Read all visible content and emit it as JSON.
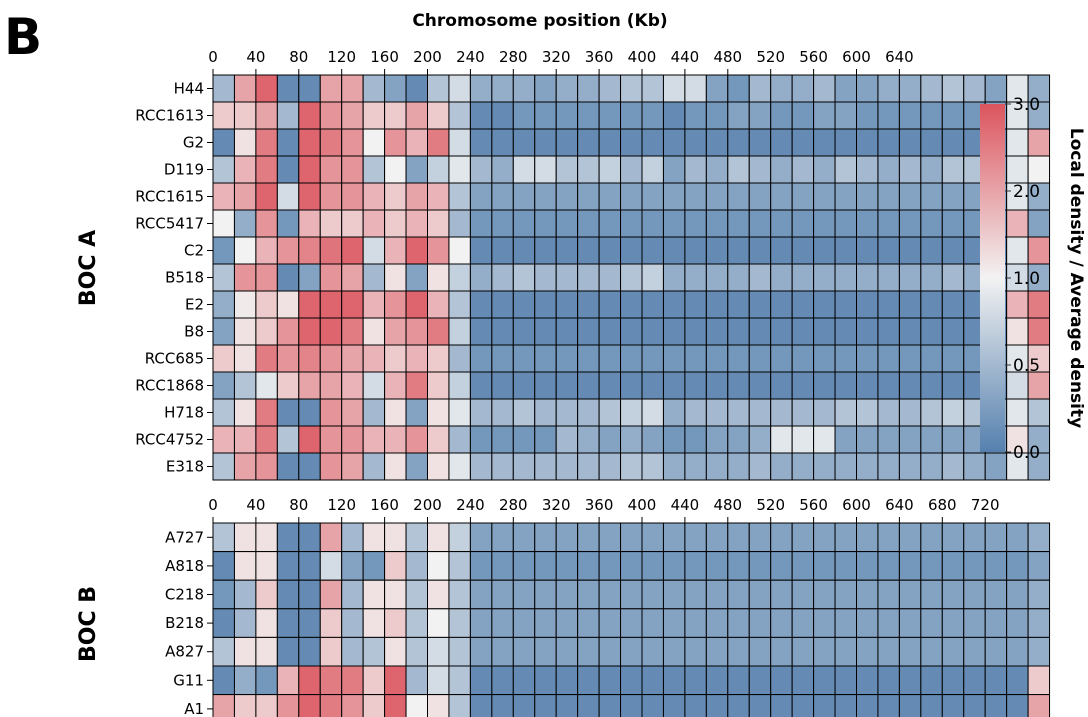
{
  "figure": {
    "panel_letter": "B",
    "xaxis_title": "Chromosome position (Kb)",
    "colorbar_label": "Local density / Average density",
    "colorbar_ticks": [
      "0.0",
      "0.5",
      "1.0",
      "2.0",
      "3.0"
    ],
    "colormap": {
      "low": "#5580ae",
      "mid": "#f2f2f2",
      "high": "#dc555e"
    }
  },
  "chart_data": [
    {
      "type": "heatmap",
      "group_label": "BOC A",
      "xlabel": "Chromosome position (Kb)",
      "x_ticks": [
        "0",
        "40",
        "80",
        "120",
        "160",
        "200",
        "240",
        "280",
        "320",
        "360",
        "400",
        "440",
        "480",
        "520",
        "560",
        "600",
        "640"
      ],
      "x_bin_kb": 20,
      "rows": [
        "H44",
        "RCC1613",
        "G2",
        "D119",
        "RCC1615",
        "RCC5417",
        "C2",
        "B518",
        "E2",
        "B8",
        "RCC685",
        "RCC1868",
        "H718",
        "RCC4752",
        "E318"
      ],
      "values": [
        [
          0.5,
          2.0,
          2.8,
          0.1,
          0.1,
          2.0,
          2.0,
          0.5,
          0.3,
          0.1,
          0.6,
          0.8,
          0.4,
          0.4,
          0.4,
          0.3,
          0.4,
          0.4,
          0.5,
          0.6,
          0.6,
          0.8,
          0.8,
          0.3,
          0.2,
          0.5,
          0.4,
          0.4,
          0.5,
          0.3,
          0.3,
          0.4,
          0.4,
          0.5,
          0.6,
          0.5,
          0.3,
          0.9,
          0.4
        ],
        [
          1.5,
          1.5,
          2.0,
          0.5,
          2.8,
          2.2,
          2.0,
          1.5,
          1.5,
          2.0,
          1.5,
          0.6,
          0.1,
          0.1,
          0.2,
          0.2,
          0.2,
          0.2,
          0.2,
          0.2,
          0.2,
          0.1,
          0.2,
          0.2,
          0.3,
          0.3,
          0.2,
          0.2,
          0.3,
          0.3,
          0.2,
          0.2,
          0.2,
          0.2,
          0.2,
          0.2,
          0.3,
          0.9,
          0.4
        ],
        [
          0.1,
          1.2,
          2.5,
          0.1,
          2.8,
          2.5,
          2.2,
          1.0,
          2.2,
          1.8,
          2.5,
          0.8,
          0.1,
          0.1,
          0.1,
          0.1,
          0.1,
          0.1,
          0.1,
          0.1,
          0.1,
          0.1,
          0.1,
          0.1,
          0.1,
          0.1,
          0.1,
          0.1,
          0.1,
          0.1,
          0.1,
          0.1,
          0.1,
          0.1,
          0.1,
          0.1,
          0.1,
          0.9,
          2.0
        ],
        [
          0.6,
          1.8,
          2.5,
          0.1,
          2.8,
          2.2,
          2.2,
          0.6,
          1.0,
          0.3,
          0.7,
          0.9,
          0.5,
          0.4,
          0.8,
          0.8,
          0.6,
          0.6,
          0.7,
          0.5,
          0.7,
          0.3,
          0.5,
          0.4,
          0.6,
          0.5,
          0.4,
          0.5,
          0.4,
          0.6,
          0.5,
          0.4,
          0.5,
          0.4,
          0.6,
          0.6,
          0.3,
          0.9,
          1.0
        ],
        [
          1.8,
          2.0,
          2.8,
          0.8,
          2.8,
          2.2,
          2.2,
          1.8,
          1.5,
          2.0,
          1.8,
          0.6,
          0.3,
          0.3,
          0.3,
          0.3,
          0.3,
          0.3,
          0.3,
          0.3,
          0.3,
          0.3,
          0.3,
          0.3,
          0.3,
          0.3,
          0.3,
          0.3,
          0.3,
          0.3,
          0.3,
          0.3,
          0.3,
          0.3,
          0.3,
          0.3,
          0.3,
          0.9,
          0.4
        ],
        [
          1.0,
          0.4,
          2.2,
          0.2,
          1.8,
          1.5,
          1.5,
          1.8,
          1.5,
          1.8,
          1.5,
          0.5,
          0.2,
          0.2,
          0.2,
          0.2,
          0.2,
          0.2,
          0.2,
          0.2,
          0.2,
          0.2,
          0.2,
          0.2,
          0.2,
          0.2,
          0.2,
          0.2,
          0.2,
          0.2,
          0.2,
          0.2,
          0.2,
          0.2,
          0.2,
          0.2,
          0.2,
          1.8,
          0.3
        ],
        [
          0.2,
          1.0,
          1.8,
          2.2,
          2.4,
          2.6,
          2.8,
          0.8,
          1.8,
          2.8,
          2.2,
          1.0,
          0.1,
          0.1,
          0.1,
          0.1,
          0.1,
          0.1,
          0.1,
          0.1,
          0.1,
          0.1,
          0.1,
          0.1,
          0.1,
          0.1,
          0.1,
          0.1,
          0.1,
          0.1,
          0.1,
          0.1,
          0.1,
          0.1,
          0.1,
          0.1,
          0.1,
          0.9,
          2.2
        ],
        [
          0.6,
          2.2,
          2.2,
          0.1,
          0.3,
          2.2,
          2.0,
          0.5,
          1.2,
          0.3,
          1.2,
          0.7,
          0.4,
          0.5,
          0.6,
          0.5,
          0.5,
          0.5,
          0.5,
          0.6,
          0.7,
          0.4,
          0.4,
          0.4,
          0.4,
          0.5,
          0.4,
          0.4,
          0.4,
          0.4,
          0.4,
          0.4,
          0.4,
          0.4,
          0.5,
          0.4,
          0.3,
          0.8,
          0.4
        ],
        [
          0.4,
          1.1,
          1.5,
          1.2,
          2.8,
          2.8,
          2.8,
          1.8,
          2.2,
          2.8,
          1.8,
          0.6,
          0.1,
          0.1,
          0.1,
          0.1,
          0.1,
          0.1,
          0.1,
          0.1,
          0.1,
          0.1,
          0.1,
          0.1,
          0.1,
          0.1,
          0.1,
          0.1,
          0.1,
          0.1,
          0.1,
          0.1,
          0.1,
          0.1,
          0.1,
          0.1,
          0.1,
          1.8,
          2.5
        ],
        [
          0.3,
          1.2,
          1.5,
          2.2,
          2.8,
          2.8,
          2.5,
          1.2,
          2.0,
          2.2,
          2.5,
          0.7,
          0.1,
          0.1,
          0.1,
          0.1,
          0.1,
          0.1,
          0.1,
          0.1,
          0.1,
          0.1,
          0.1,
          0.1,
          0.1,
          0.1,
          0.1,
          0.1,
          0.1,
          0.1,
          0.1,
          0.1,
          0.1,
          0.1,
          0.1,
          0.1,
          0.1,
          1.2,
          2.5
        ],
        [
          1.5,
          1.2,
          2.5,
          2.2,
          2.4,
          2.2,
          2.0,
          1.8,
          1.5,
          1.8,
          1.5,
          0.5,
          0.2,
          0.2,
          0.2,
          0.2,
          0.2,
          0.2,
          0.2,
          0.2,
          0.2,
          0.2,
          0.2,
          0.2,
          0.2,
          0.2,
          0.2,
          0.2,
          0.2,
          0.2,
          0.2,
          0.2,
          0.2,
          0.2,
          0.2,
          0.2,
          0.2,
          0.9,
          1.5
        ],
        [
          0.3,
          0.6,
          0.9,
          1.5,
          2.0,
          2.0,
          1.8,
          0.8,
          1.8,
          2.5,
          1.5,
          0.7,
          0.1,
          0.1,
          0.1,
          0.1,
          0.1,
          0.1,
          0.1,
          0.1,
          0.1,
          0.1,
          0.1,
          0.1,
          0.1,
          0.1,
          0.1,
          0.1,
          0.1,
          0.1,
          0.1,
          0.1,
          0.1,
          0.1,
          0.1,
          0.1,
          0.1,
          0.8,
          2.0
        ],
        [
          0.6,
          1.2,
          2.5,
          0.1,
          0.1,
          2.2,
          2.0,
          0.5,
          1.2,
          0.3,
          1.2,
          0.9,
          0.5,
          0.5,
          0.6,
          0.5,
          0.5,
          0.5,
          0.6,
          0.7,
          0.8,
          0.4,
          0.5,
          0.5,
          0.5,
          0.5,
          0.5,
          0.5,
          0.5,
          0.6,
          0.6,
          0.5,
          0.5,
          0.6,
          0.7,
          0.6,
          0.4,
          0.9,
          0.6
        ],
        [
          1.8,
          1.8,
          2.5,
          0.6,
          2.8,
          2.2,
          2.2,
          1.8,
          1.8,
          2.2,
          1.5,
          0.5,
          0.2,
          0.2,
          0.2,
          0.2,
          0.5,
          0.4,
          0.3,
          0.4,
          0.3,
          0.2,
          0.2,
          0.3,
          0.3,
          0.4,
          0.9,
          0.9,
          0.9,
          0.3,
          0.3,
          0.3,
          0.3,
          0.3,
          0.3,
          0.3,
          0.3,
          1.2,
          0.4
        ],
        [
          0.6,
          2.0,
          2.2,
          0.1,
          0.1,
          2.2,
          2.0,
          0.5,
          1.2,
          0.3,
          1.2,
          0.9,
          0.5,
          0.5,
          0.5,
          0.5,
          0.5,
          0.5,
          0.5,
          0.6,
          0.6,
          0.4,
          0.4,
          0.4,
          0.4,
          0.5,
          0.4,
          0.4,
          0.4,
          0.4,
          0.4,
          0.4,
          0.4,
          0.4,
          0.5,
          0.4,
          0.3,
          0.9,
          0.4
        ]
      ]
    },
    {
      "type": "heatmap",
      "group_label": "BOC B",
      "xlabel": "Chromosome position (Kb)",
      "x_ticks": [
        "0",
        "40",
        "80",
        "120",
        "160",
        "200",
        "240",
        "280",
        "320",
        "360",
        "400",
        "440",
        "480",
        "520",
        "560",
        "600",
        "640",
        "680",
        "720"
      ],
      "x_bin_kb": 20,
      "rows": [
        "A727",
        "A818",
        "C218",
        "B218",
        "A827",
        "G11",
        "A1"
      ],
      "values": [
        [
          0.6,
          1.2,
          1.2,
          0.1,
          0.1,
          2.0,
          0.5,
          1.2,
          1.2,
          0.6,
          1.2,
          0.7,
          0.3,
          0.3,
          0.3,
          0.3,
          0.3,
          0.3,
          0.3,
          0.3,
          0.3,
          0.3,
          0.3,
          0.3,
          0.3,
          0.3,
          0.3,
          0.3,
          0.3,
          0.3,
          0.3,
          0.3,
          0.3,
          0.3,
          0.3,
          0.3,
          0.3,
          0.3,
          0.4
        ],
        [
          0.1,
          1.2,
          1.2,
          0.1,
          0.1,
          0.8,
          0.3,
          0.2,
          1.5,
          0.5,
          1.0,
          0.6,
          0.2,
          0.2,
          0.2,
          0.2,
          0.2,
          0.2,
          0.2,
          0.2,
          0.2,
          0.2,
          0.2,
          0.2,
          0.2,
          0.2,
          0.2,
          0.2,
          0.2,
          0.2,
          0.2,
          0.2,
          0.2,
          0.2,
          0.2,
          0.2,
          0.2,
          0.2,
          0.3
        ],
        [
          0.2,
          0.5,
          1.5,
          0.1,
          0.1,
          2.0,
          0.5,
          1.2,
          1.2,
          0.6,
          1.2,
          0.6,
          0.3,
          0.3,
          0.3,
          0.3,
          0.3,
          0.3,
          0.3,
          0.3,
          0.3,
          0.3,
          0.3,
          0.3,
          0.3,
          0.3,
          0.3,
          0.3,
          0.3,
          0.3,
          0.3,
          0.3,
          0.3,
          0.3,
          0.3,
          0.3,
          0.3,
          0.3,
          0.4
        ],
        [
          0.1,
          0.5,
          1.2,
          0.1,
          0.1,
          1.5,
          0.5,
          1.2,
          1.5,
          0.6,
          1.0,
          0.6,
          0.3,
          0.3,
          0.3,
          0.3,
          0.3,
          0.3,
          0.3,
          0.3,
          0.3,
          0.3,
          0.3,
          0.3,
          0.3,
          0.3,
          0.3,
          0.3,
          0.3,
          0.3,
          0.3,
          0.3,
          0.3,
          0.3,
          0.3,
          0.3,
          0.3,
          0.3,
          0.4
        ],
        [
          0.6,
          1.2,
          1.2,
          0.1,
          0.1,
          1.5,
          0.5,
          0.6,
          1.2,
          0.6,
          0.8,
          0.6,
          0.3,
          0.3,
          0.3,
          0.3,
          0.3,
          0.3,
          0.3,
          0.3,
          0.3,
          0.3,
          0.3,
          0.3,
          0.3,
          0.3,
          0.3,
          0.3,
          0.3,
          0.3,
          0.3,
          0.3,
          0.3,
          0.3,
          0.3,
          0.3,
          0.3,
          0.3,
          0.4
        ],
        [
          0.1,
          0.4,
          0.2,
          1.8,
          2.8,
          2.5,
          2.5,
          1.5,
          2.8,
          0.5,
          0.8,
          0.6,
          0.1,
          0.1,
          0.1,
          0.1,
          0.1,
          0.1,
          0.1,
          0.1,
          0.1,
          0.1,
          0.1,
          0.1,
          0.1,
          0.1,
          0.1,
          0.1,
          0.1,
          0.1,
          0.1,
          0.1,
          0.1,
          0.1,
          0.1,
          0.1,
          0.1,
          0.1,
          1.5
        ],
        [
          2.0,
          1.5,
          1.5,
          2.2,
          2.8,
          2.5,
          2.2,
          1.5,
          2.8,
          1.0,
          1.2,
          0.6,
          0.1,
          0.1,
          0.1,
          0.1,
          0.1,
          0.1,
          0.1,
          0.1,
          0.1,
          0.1,
          0.1,
          0.1,
          0.1,
          0.1,
          0.1,
          0.1,
          0.1,
          0.1,
          0.1,
          0.1,
          0.1,
          0.1,
          0.1,
          0.1,
          0.1,
          0.1,
          2.0
        ]
      ]
    }
  ]
}
